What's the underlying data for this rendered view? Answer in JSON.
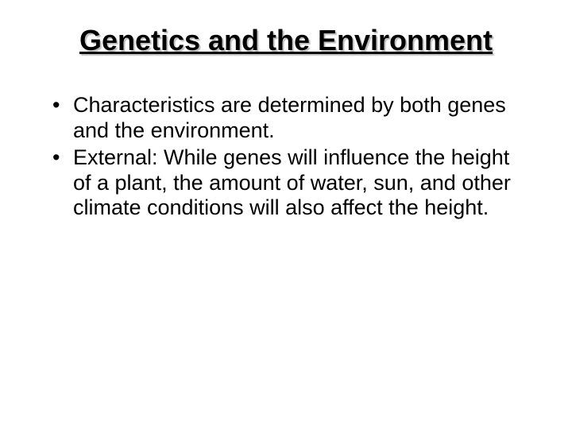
{
  "title": "Genetics and the Environment",
  "bullets": [
    "Characteristics are determined by both genes and the environment.",
    "External: While genes will influence the height of a plant, the amount of water, sun, and other climate conditions will also affect the height."
  ],
  "styling": {
    "background_color": "#ffffff",
    "text_color": "#000000",
    "title_fontsize": 36,
    "body_fontsize": 27,
    "title_underline": true,
    "title_shadow": "2px 2px 1px rgba(0,0,0,0.25)",
    "font_family": "Arial"
  }
}
